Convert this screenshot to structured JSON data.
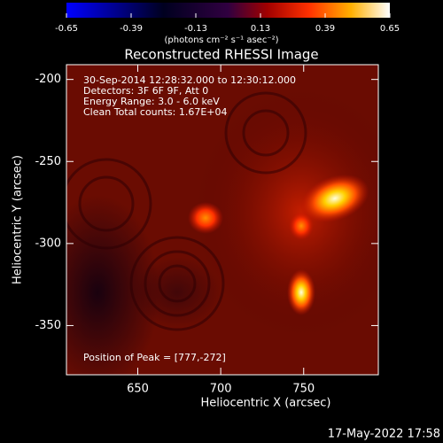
{
  "chart_data": {
    "type": "image",
    "title": "Reconstructed RHESSI Image",
    "colorbar_label": "(photons cm⁻² s⁻¹ asec⁻²)",
    "cbarlim": [
      -0.65,
      0.65
    ],
    "cbarticks": [
      -0.65,
      -0.39,
      -0.13,
      0.13,
      0.39,
      0.65
    ],
    "x_label": "Heliocentric X (arcsec)",
    "y_label": "Heliocentric Y (arcsec)",
    "xlim": [
      607,
      795
    ],
    "xticks": [
      650,
      700,
      750
    ],
    "ylim": [
      -380,
      -191
    ],
    "yticks": [
      -200,
      -250,
      -300,
      -350
    ],
    "annotations": [
      "30-Sep-2014 12:28:32.000 to 12:30:12.000",
      "Detectors: 3F 6F 9F, Att 0",
      "Energy Range: 3.0 - 6.0 keV",
      "Clean     Total counts: 1.67E+04"
    ],
    "peak_label": "Position of Peak = [777,-272]",
    "footer": "17-May-2022 17:58"
  }
}
